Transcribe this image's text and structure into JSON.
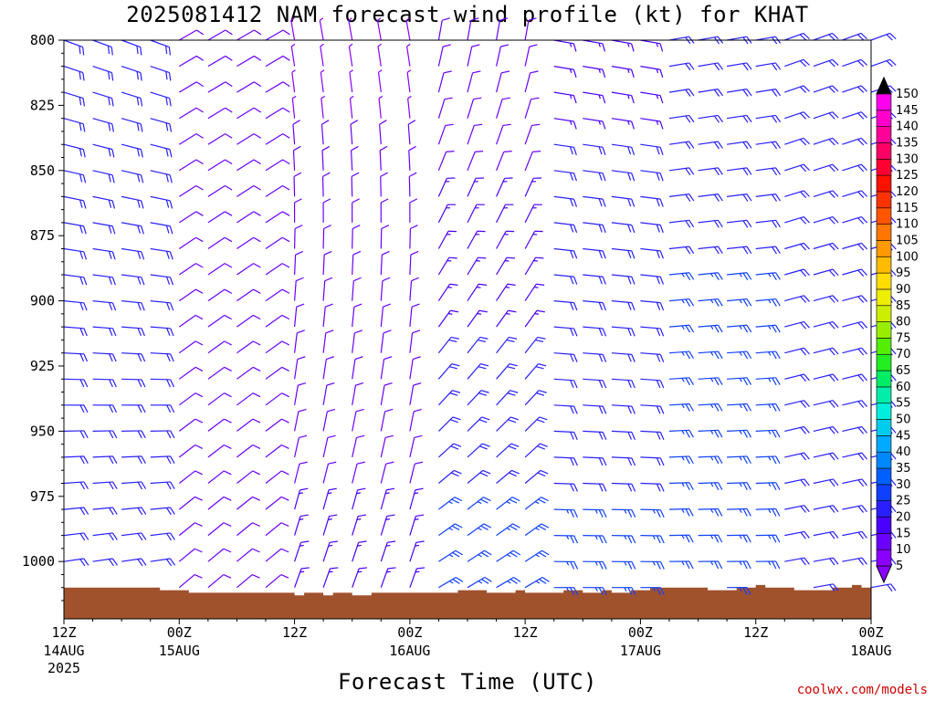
{
  "title": "2025081412 NAM forecast wind profile (kt) for KHAT",
  "xlabel": "Forecast Time (UTC)",
  "credit": "coolwx.com/models",
  "chart_data": {
    "type": "wind-barb-profile",
    "y_axis": {
      "label": "",
      "ticks": [
        "800",
        "825",
        "850",
        "875",
        "900",
        "925",
        "950",
        "975",
        "1000"
      ],
      "range_hpa": [
        800,
        1022
      ]
    },
    "x_axis": {
      "range_hours": [
        0,
        84
      ],
      "ticks": [
        {
          "hour": 0,
          "label": "12Z",
          "sub1": "14AUG",
          "sub2": "2025"
        },
        {
          "hour": 12,
          "label": "00Z",
          "sub1": "15AUG",
          "sub2": ""
        },
        {
          "hour": 24,
          "label": "12Z",
          "sub1": "",
          "sub2": ""
        },
        {
          "hour": 36,
          "label": "00Z",
          "sub1": "16AUG",
          "sub2": ""
        },
        {
          "hour": 48,
          "label": "12Z",
          "sub1": "",
          "sub2": ""
        },
        {
          "hour": 60,
          "label": "00Z",
          "sub1": "17AUG",
          "sub2": ""
        },
        {
          "hour": 72,
          "label": "12Z",
          "sub1": "",
          "sub2": ""
        },
        {
          "hour": 84,
          "label": "00Z",
          "sub1": "18AUG",
          "sub2": ""
        }
      ]
    },
    "colorbar": {
      "labels": [
        "5",
        "10",
        "15",
        "20",
        "25",
        "30",
        "35",
        "40",
        "45",
        "50",
        "55",
        "60",
        "65",
        "70",
        "75",
        "80",
        "85",
        "90",
        "95",
        "100",
        "105",
        "110",
        "115",
        "120",
        "125",
        "130",
        "135",
        "140",
        "145",
        "150"
      ],
      "colors": [
        "#8a00ff",
        "#6a00ff",
        "#4a00ff",
        "#2a20ff",
        "#1040ff",
        "#0060ff",
        "#0088ff",
        "#00aaff",
        "#00ccee",
        "#00eedd",
        "#00eeaa",
        "#00ee66",
        "#22ee22",
        "#55ee00",
        "#99ee00",
        "#ccee00",
        "#eeee00",
        "#ffdd00",
        "#ffbb00",
        "#ff9900",
        "#ff7700",
        "#ff5500",
        "#ff3300",
        "#ff1100",
        "#ff0033",
        "#ff0066",
        "#ff0099",
        "#ff00cc",
        "#ff00ee",
        "#000000"
      ]
    },
    "terrain": {
      "color": "#a0522d",
      "surface_hpa": [
        [
          0,
          1010
        ],
        [
          9,
          1010
        ],
        [
          10,
          1011
        ],
        [
          12,
          1011
        ],
        [
          13,
          1012
        ],
        [
          23,
          1012
        ],
        [
          24,
          1013
        ],
        [
          25,
          1012
        ],
        [
          27,
          1013
        ],
        [
          28,
          1012
        ],
        [
          30,
          1013
        ],
        [
          32,
          1012
        ],
        [
          40,
          1012
        ],
        [
          41,
          1011
        ],
        [
          44,
          1012
        ],
        [
          47,
          1011
        ],
        [
          48,
          1012
        ],
        [
          52,
          1011
        ],
        [
          54,
          1012
        ],
        [
          56,
          1011
        ],
        [
          57,
          1012
        ],
        [
          59,
          1011
        ],
        [
          61,
          1010
        ],
        [
          67,
          1011
        ],
        [
          68,
          1011
        ],
        [
          70,
          1010
        ],
        [
          72,
          1009
        ],
        [
          73,
          1010
        ],
        [
          75,
          1010
        ],
        [
          76,
          1011
        ],
        [
          80,
          1010
        ],
        [
          82,
          1009
        ],
        [
          83,
          1010
        ],
        [
          84,
          1011
        ]
      ]
    },
    "wind_bands": [
      {
        "from_hour": 0,
        "to_hour": 10,
        "dir_upper_deg": 290,
        "dir_lower_deg": 260,
        "kt_upper": 20,
        "kt_lower": 22
      },
      {
        "from_hour": 10,
        "to_hour": 23,
        "dir_upper_deg": 240,
        "dir_lower_deg": 230,
        "kt_upper": 10,
        "kt_lower": 12
      },
      {
        "from_hour": 24,
        "to_hour": 36,
        "dir_upper_deg": 170,
        "dir_lower_deg": 200,
        "kt_upper": 8,
        "kt_lower": 16
      },
      {
        "from_hour": 36,
        "to_hour": 48,
        "dir_upper_deg": 190,
        "dir_lower_deg": 240,
        "kt_upper": 10,
        "kt_lower": 28
      },
      {
        "from_hour": 48,
        "to_hour": 60,
        "dir_upper_deg": 280,
        "dir_lower_deg": 270,
        "kt_upper": 18,
        "kt_lower": 26
      },
      {
        "from_hour": 60,
        "to_hour": 72,
        "dir_upper_deg": 260,
        "dir_lower_deg": 270,
        "kt_upper": 22,
        "kt_lower": 28
      },
      {
        "from_hour": 72,
        "to_hour": 84,
        "dir_upper_deg": 250,
        "dir_lower_deg": 260,
        "kt_upper": 22,
        "kt_lower": 20
      }
    ]
  }
}
